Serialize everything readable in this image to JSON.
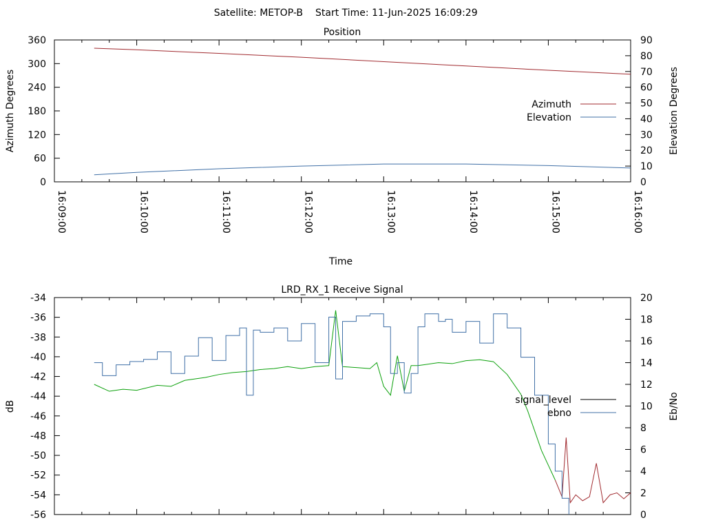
{
  "header": {
    "satellite": "Satellite: METOP-B",
    "start_time": "Start Time: 11-Jun-2025 16:09:29"
  },
  "colors": {
    "azimuth": "#a0292e",
    "elevation": "#3f6fa6",
    "signal_level_green": "#0aa00a",
    "signal_level_red": "#a0292e",
    "ebno": "#3f6fa6",
    "legend_signal_level": "#000000"
  },
  "chart_data": [
    {
      "type": "line",
      "title": "Position",
      "xlabel": "Time",
      "ylabel": "Azimuth Degrees",
      "y2label": "Elevation Degrees",
      "x_ticks": [
        "16:09:00",
        "16:10:00",
        "16:11:00",
        "16:12:00",
        "16:13:00",
        "16:14:00",
        "16:15:00",
        "16:16:00"
      ],
      "xlim": [
        "16:09:00",
        "16:16:00"
      ],
      "ylim": [
        0,
        360
      ],
      "y_ticks": [
        0,
        60,
        120,
        180,
        240,
        300,
        360
      ],
      "y2lim": [
        0,
        90
      ],
      "y2_ticks": [
        0,
        10,
        20,
        30,
        40,
        50,
        60,
        70,
        80,
        90
      ],
      "legend": "right",
      "series": [
        {
          "name": "Azimuth",
          "axis": "y",
          "x": [
            "16:09:29",
            "16:10:00",
            "16:11:00",
            "16:12:00",
            "16:13:00",
            "16:14:00",
            "16:15:00",
            "16:16:00"
          ],
          "values": [
            339,
            335,
            326,
            316,
            305,
            294,
            283,
            273
          ]
        },
        {
          "name": "Elevation",
          "axis": "y2",
          "x": [
            "16:09:29",
            "16:10:00",
            "16:11:00",
            "16:12:00",
            "16:13:00",
            "16:14:00",
            "16:15:00",
            "16:16:00"
          ],
          "values": [
            4.5,
            6.0,
            8.3,
            10.0,
            11.3,
            11.3,
            10.3,
            8.8
          ]
        }
      ]
    },
    {
      "type": "line",
      "title": "LRD_RX_1 Receive Signal",
      "ylabel": "dB",
      "y2label": "Eb/No",
      "xlim": [
        "16:09:00",
        "16:16:00"
      ],
      "ylim": [
        -56,
        -34
      ],
      "y_ticks": [
        -56,
        -54,
        -52,
        -50,
        -48,
        -46,
        -44,
        -42,
        -40,
        -38,
        -36,
        -34
      ],
      "y2lim": [
        0,
        20
      ],
      "y2_ticks": [
        0,
        2,
        4,
        6,
        8,
        10,
        12,
        14,
        16,
        18,
        20
      ],
      "legend": "right",
      "series": [
        {
          "name": "signal_level",
          "axis": "y",
          "x": [
            "16:09:29",
            "16:09:40",
            "16:09:50",
            "16:10:00",
            "16:10:15",
            "16:10:25",
            "16:10:35",
            "16:10:45",
            "16:10:50",
            "16:11:00",
            "16:11:10",
            "16:11:20",
            "16:11:30",
            "16:11:40",
            "16:11:50",
            "16:12:00",
            "16:12:10",
            "16:12:20",
            "16:12:25",
            "16:12:30",
            "16:12:40",
            "16:12:50",
            "16:12:55",
            "16:13:00",
            "16:13:05",
            "16:13:10",
            "16:13:15",
            "16:13:20",
            "16:13:25",
            "16:13:30",
            "16:13:40",
            "16:13:50",
            "16:14:00",
            "16:14:10",
            "16:14:20",
            "16:14:30",
            "16:14:40",
            "16:14:45",
            "16:14:50",
            "16:14:55",
            "16:15:00",
            "16:15:05",
            "16:15:10",
            "16:15:13",
            "16:15:16",
            "16:15:20",
            "16:15:25",
            "16:15:30",
            "16:15:35",
            "16:15:40",
            "16:15:45",
            "16:15:50",
            "16:15:55",
            "16:16:00"
          ],
          "values": [
            -42.8,
            -43.5,
            -43.3,
            -43.4,
            -42.9,
            -43.0,
            -42.4,
            -42.2,
            -42.1,
            -41.8,
            -41.6,
            -41.5,
            -41.3,
            -41.2,
            -41.0,
            -41.2,
            -41.0,
            -40.9,
            -35.3,
            -41.0,
            -41.1,
            -41.2,
            -40.6,
            -43.0,
            -43.9,
            -39.9,
            -43.5,
            -40.9,
            -40.9,
            -40.8,
            -40.6,
            -40.7,
            -40.4,
            -40.3,
            -40.5,
            -41.8,
            -43.8,
            -45.5,
            -47.5,
            -49.5,
            -51.0,
            -52.5,
            -54.2,
            -48.2,
            -54.8,
            -54.0,
            -54.6,
            -54.2,
            -50.8,
            -54.8,
            -54.0,
            -53.8,
            -54.4,
            -53.8
          ]
        },
        {
          "name": "ebno",
          "axis": "y2",
          "x": [
            "16:09:29",
            "16:09:35",
            "16:09:45",
            "16:09:55",
            "16:10:05",
            "16:10:15",
            "16:10:25",
            "16:10:35",
            "16:10:45",
            "16:10:55",
            "16:11:05",
            "16:11:15",
            "16:11:20",
            "16:11:25",
            "16:11:30",
            "16:11:40",
            "16:11:50",
            "16:12:00",
            "16:12:10",
            "16:12:20",
            "16:12:25",
            "16:12:30",
            "16:12:40",
            "16:12:50",
            "16:13:00",
            "16:13:05",
            "16:13:10",
            "16:13:15",
            "16:13:20",
            "16:13:25",
            "16:13:30",
            "16:13:40",
            "16:13:45",
            "16:13:50",
            "16:14:00",
            "16:14:10",
            "16:14:20",
            "16:14:30",
            "16:14:40",
            "16:14:50",
            "16:15:00",
            "16:15:05",
            "16:15:10",
            "16:15:15"
          ],
          "values": [
            14.0,
            12.8,
            13.8,
            14.1,
            14.3,
            15.0,
            13.0,
            14.6,
            16.3,
            14.2,
            16.5,
            17.2,
            11.0,
            17.0,
            16.8,
            17.2,
            16.0,
            17.6,
            14.0,
            18.2,
            12.5,
            17.8,
            18.3,
            18.5,
            17.3,
            13.0,
            14.0,
            11.2,
            13.0,
            17.3,
            18.5,
            17.8,
            18.0,
            16.8,
            17.8,
            15.8,
            18.5,
            17.2,
            14.5,
            11.0,
            6.5,
            4.0,
            1.5,
            0.0
          ]
        }
      ]
    }
  ]
}
